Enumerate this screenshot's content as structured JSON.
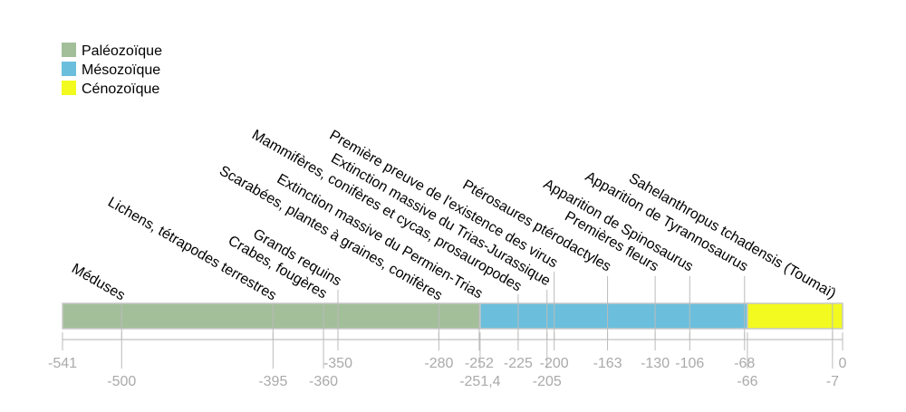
{
  "chart_data": {
    "type": "timeline",
    "xlim": [
      -541,
      0
    ],
    "legend": {
      "placement": "top-left",
      "items": [
        {
          "label": "Paléozoïque",
          "color": "#a2bf9a"
        },
        {
          "label": "Mésozoïque",
          "color": "#6bbfdc"
        },
        {
          "label": "Cénozoïque",
          "color": "#f2fa1f"
        }
      ]
    },
    "eras": [
      {
        "name": "Paléozoïque",
        "start": -541,
        "end": -251.4,
        "color": "#a2bf9a"
      },
      {
        "name": "Mésozoïque",
        "start": -251.4,
        "end": -66,
        "color": "#6bbfdc"
      },
      {
        "name": "Cénozoïque",
        "start": -66,
        "end": 0,
        "color": "#f2fa1f"
      }
    ],
    "events": [
      {
        "x": -500,
        "label": "Méduses"
      },
      {
        "x": -395,
        "label": "Lichens, tétrapodes terrestres"
      },
      {
        "x": -360,
        "label": "Crabes, fougères"
      },
      {
        "x": -350,
        "label": "Grands requins"
      },
      {
        "x": -280,
        "label": "Scarabées, plantes à graines, conifères"
      },
      {
        "x": -252,
        "label": "Extinction massive du Permien-Trias"
      },
      {
        "x": -225,
        "label": "Mammifères, conifères et cycas, prosauropodes"
      },
      {
        "x": -205,
        "label": "Extinction massive du Trias-Jurassique"
      },
      {
        "x": -200,
        "label": "Première preuve de l'existence des virus"
      },
      {
        "x": -163,
        "label": "Ptérosaures ptérodactyles"
      },
      {
        "x": -130,
        "label": "Premières fleurs"
      },
      {
        "x": -106,
        "label": "Apparition de Spinosaurus"
      },
      {
        "x": -68,
        "label": "Apparition de Tyrannosaurus"
      },
      {
        "x": -7,
        "label": "Sahelanthropus tchadensis (Toumaï)"
      }
    ],
    "ticks": [
      {
        "x": -541,
        "label": "-541",
        "row": 1
      },
      {
        "x": -500,
        "label": "-500",
        "row": 2
      },
      {
        "x": -395,
        "label": "-395",
        "row": 2
      },
      {
        "x": -360,
        "label": "-360",
        "row": 2
      },
      {
        "x": -350,
        "label": "-350",
        "row": 1
      },
      {
        "x": -280,
        "label": "-280",
        "row": 1
      },
      {
        "x": -252,
        "label": "-252",
        "row": 1
      },
      {
        "x": -251.4,
        "label": "-251,4",
        "row": 2
      },
      {
        "x": -225,
        "label": "-225",
        "row": 1
      },
      {
        "x": -205,
        "label": "-205",
        "row": 2
      },
      {
        "x": -200,
        "label": "-200",
        "row": 1
      },
      {
        "x": -163,
        "label": "-163",
        "row": 1
      },
      {
        "x": -130,
        "label": "-130",
        "row": 1
      },
      {
        "x": -106,
        "label": "-106",
        "row": 1
      },
      {
        "x": -68,
        "label": "-68",
        "row": 1
      },
      {
        "x": -66,
        "label": "-66",
        "row": 2
      },
      {
        "x": -7,
        "label": "-7",
        "row": 2
      },
      {
        "x": 0,
        "label": "0",
        "row": 1
      }
    ]
  }
}
